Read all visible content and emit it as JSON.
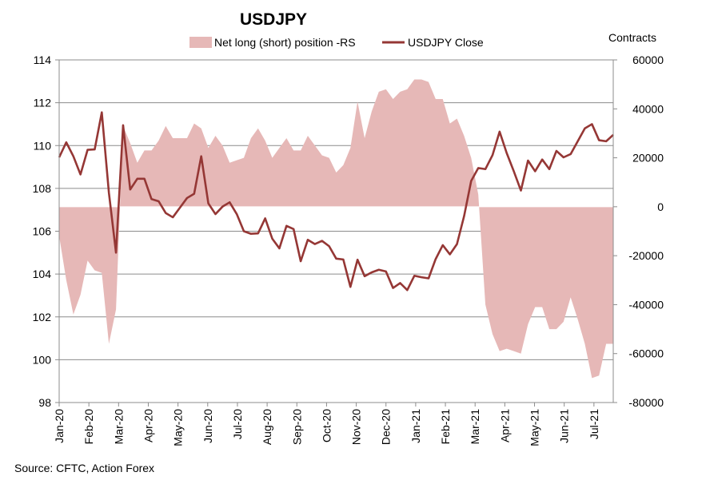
{
  "chart_data": {
    "type": "line",
    "title": "USDJPY",
    "y2label": "Contracts",
    "source": "Source: CFTC, Action Forex",
    "y_left_lim": [
      98,
      114
    ],
    "y_left_ticks": [
      "98",
      "100",
      "102",
      "104",
      "106",
      "108",
      "110",
      "112",
      "114"
    ],
    "y_right_lim": [
      -80000,
      60000
    ],
    "y_right_ticks": [
      "-80000",
      "-60000",
      "-40000",
      "-20000",
      "0",
      "20000",
      "40000",
      "60000"
    ],
    "x_ticks": [
      "Jan-20",
      "Feb-20",
      "Mar-20",
      "Apr-20",
      "May-20",
      "Jun-20",
      "Jul-20",
      "Aug-20",
      "Sep-20",
      "Oct-20",
      "Nov-20",
      "Dec-20",
      "Jan-21",
      "Feb-21",
      "Mar-21",
      "Apr-21",
      "May-21",
      "Jun-21",
      "Jul-21"
    ],
    "grid": "horizontal",
    "legend": "top",
    "series": [
      {
        "name": "Net long (short) position -RS",
        "kind": "area",
        "axis": "right",
        "color": "#e6b8b7",
        "values": [
          -12000,
          -30000,
          -44000,
          -36000,
          -22000,
          -26000,
          -27000,
          -56000,
          -42000,
          33000,
          26000,
          18000,
          23000,
          23000,
          27000,
          33000,
          28000,
          28000,
          28000,
          34000,
          32000,
          24000,
          29000,
          25000,
          18000,
          19000,
          20000,
          28000,
          32000,
          27000,
          20000,
          24000,
          28000,
          23000,
          23000,
          29000,
          25000,
          21000,
          20000,
          14000,
          17000,
          24000,
          43000,
          28000,
          39000,
          47000,
          48000,
          44000,
          47000,
          48000,
          52000,
          52000,
          51000,
          44000,
          44000,
          34000,
          36000,
          29000,
          20000,
          5000,
          -40000,
          -52000,
          -59000,
          -58000,
          -59000,
          -60000,
          -48000,
          -41000,
          -41000,
          -50000,
          -50000,
          -47000,
          -37000,
          -46000,
          -56000,
          -70000,
          -69000,
          -56000,
          -56000
        ]
      },
      {
        "name": "USDJPY Close",
        "kind": "line",
        "axis": "left",
        "color": "#953735",
        "values": [
          109.45,
          110.15,
          109.5,
          108.65,
          109.8,
          109.82,
          111.55,
          107.8,
          105.0,
          110.95,
          107.95,
          108.45,
          108.45,
          107.5,
          107.4,
          106.85,
          106.65,
          107.1,
          107.55,
          107.75,
          109.5,
          107.3,
          106.8,
          107.15,
          107.35,
          106.8,
          106.0,
          105.88,
          105.9,
          106.6,
          105.65,
          105.2,
          106.25,
          106.1,
          104.6,
          105.6,
          105.4,
          105.55,
          105.3,
          104.72,
          104.68,
          103.4,
          104.67,
          103.9,
          104.08,
          104.2,
          104.12,
          103.35,
          103.58,
          103.25,
          103.92,
          103.85,
          103.8,
          104.7,
          105.35,
          104.92,
          105.4,
          106.7,
          108.35,
          108.95,
          108.9,
          109.55,
          110.65,
          109.65,
          108.8,
          107.9,
          109.3,
          108.8,
          109.35,
          108.9,
          109.75,
          109.45,
          109.6,
          110.2,
          110.8,
          111.0,
          110.25,
          110.2,
          110.5
        ]
      }
    ]
  }
}
